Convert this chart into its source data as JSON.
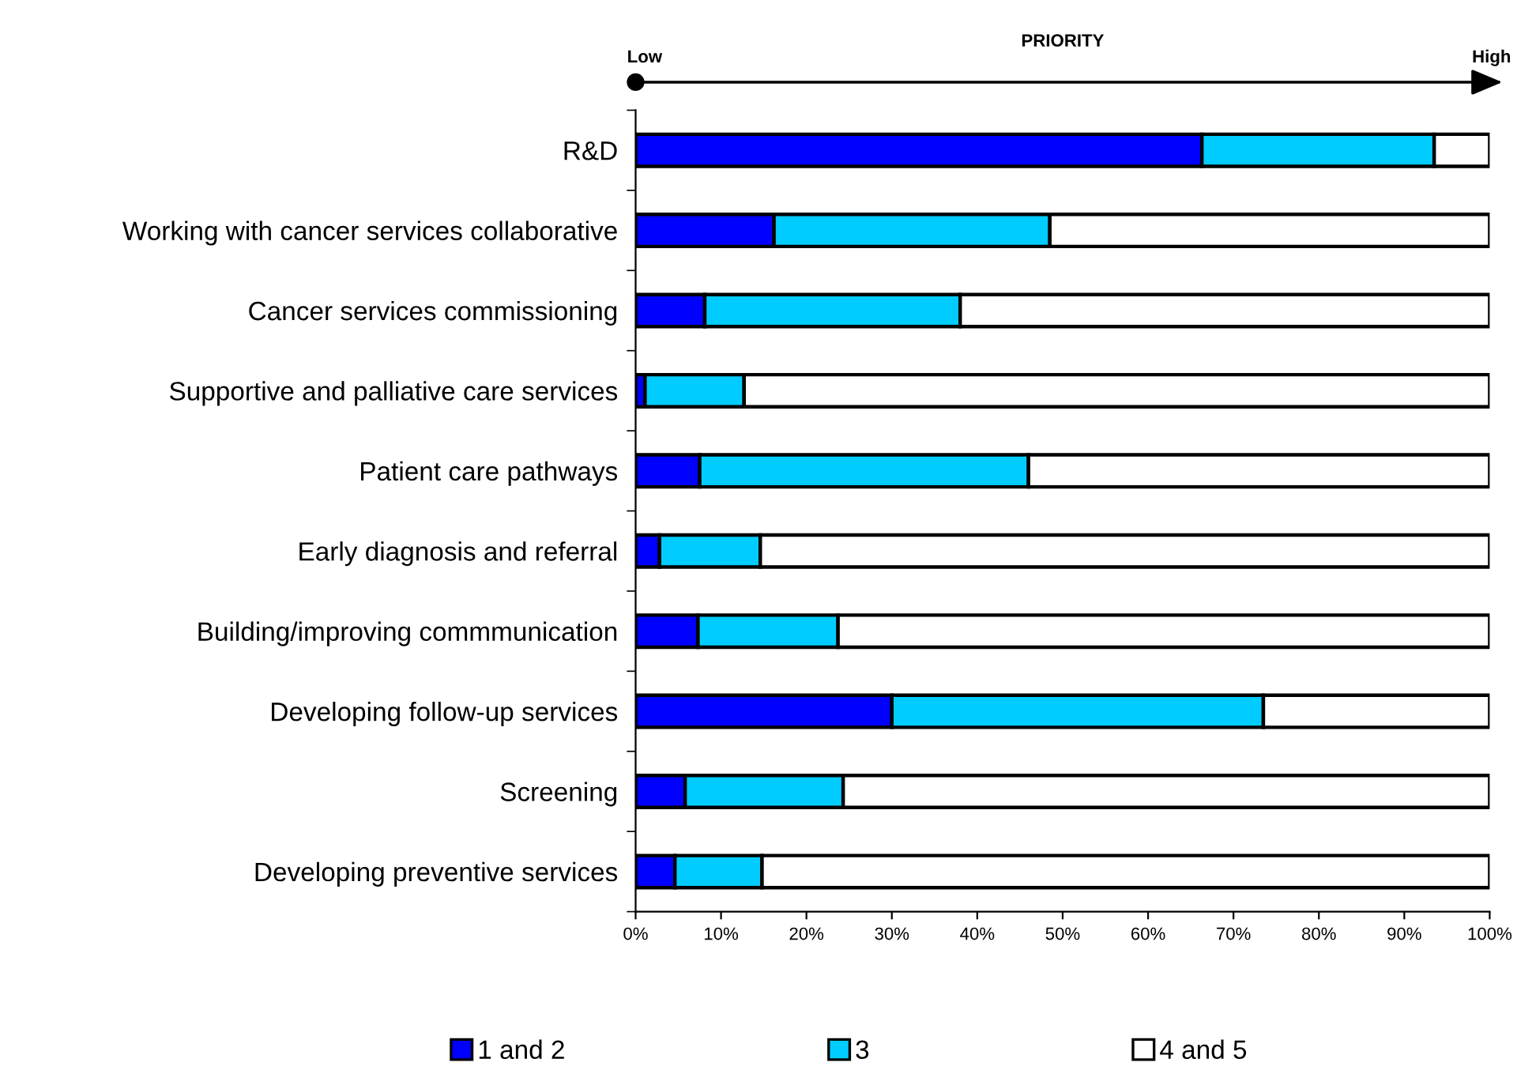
{
  "chart_data": {
    "type": "bar",
    "orientation": "horizontal",
    "stacked": true,
    "categories": [
      "R&D",
      "Working with cancer services collaborative",
      "Cancer services commissioning",
      "Supportive and palliative care services",
      "Patient care pathways",
      "Early diagnosis and referral",
      "Building/improving commmunication",
      "Developing follow-up services",
      "Screening",
      "Developing preventive services"
    ],
    "series": [
      {
        "name": "1 and 2",
        "color": "#0000ff",
        "values": [
          66.3,
          16.2,
          8.1,
          1.1,
          7.5,
          2.8,
          7.3,
          30.0,
          5.8,
          4.6
        ]
      },
      {
        "name": "3",
        "color": "#00ccff",
        "values": [
          27.2,
          32.3,
          29.9,
          11.6,
          38.5,
          11.8,
          16.4,
          43.5,
          18.5,
          10.2
        ]
      },
      {
        "name": "4 and 5",
        "color": "#ffffff",
        "values": [
          6.5,
          51.5,
          62.0,
          87.3,
          54.0,
          85.4,
          76.3,
          26.5,
          75.7,
          85.2
        ]
      }
    ],
    "xlim": [
      0,
      100
    ],
    "xticks": [
      {
        "value": 0,
        "label": "0%"
      },
      {
        "value": 10,
        "label": "10%"
      },
      {
        "value": 20,
        "label": "20%"
      },
      {
        "value": 30,
        "label": "30%"
      },
      {
        "value": 40,
        "label": "40%"
      },
      {
        "value": 50,
        "label": "50%"
      },
      {
        "value": 60,
        "label": "60%"
      },
      {
        "value": 70,
        "label": "70%"
      },
      {
        "value": 80,
        "label": "80%"
      },
      {
        "value": 90,
        "label": "90%"
      },
      {
        "value": 100,
        "label": "100%"
      }
    ],
    "grid": false,
    "legend": "bottom",
    "annotations": [
      "PRIORITY",
      "Low",
      "High"
    ]
  }
}
